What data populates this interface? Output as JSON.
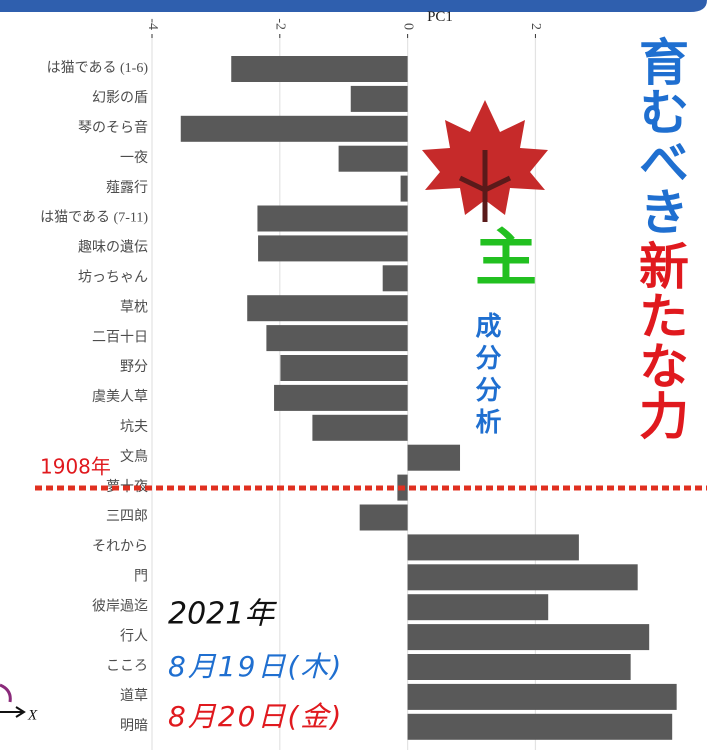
{
  "chart_data": {
    "type": "bar",
    "orientation": "horizontal",
    "x_label": "PC1",
    "categories": [
      "は猫である (1-6)",
      "幻影の盾",
      "琴のそら音",
      "一夜",
      "薤露行",
      "は猫である (7-11)",
      "趣味の遺伝",
      "坊っちゃん",
      "草枕",
      "二百十日",
      "野分",
      "虞美人草",
      "坑夫",
      "文鳥",
      "夢十夜",
      "三四郎",
      "それから",
      "門",
      "彼岸過迄",
      "行人",
      "こころ",
      "道草",
      "明暗"
    ],
    "values": [
      -2.76,
      -0.89,
      -3.55,
      -1.08,
      -0.11,
      -2.35,
      -2.34,
      -0.39,
      -2.51,
      -2.21,
      -1.99,
      -2.09,
      -1.49,
      0.82,
      -0.16,
      -0.75,
      2.68,
      3.6,
      2.2,
      3.78,
      3.49,
      4.21,
      4.14
    ],
    "color": "#595959",
    "xlim": [
      -4,
      4.45
    ],
    "xticks": [
      -4,
      -2,
      0,
      2
    ],
    "grid": true
  },
  "overlay": {
    "heading_blue": "育むべき",
    "heading_red": "新たな力",
    "main": "主",
    "sub": "成分分析",
    "marker": "1908年",
    "year": "2021年",
    "dates": [
      "8月19日(木)",
      "8月20日(金)"
    ],
    "axis_hint": "X"
  }
}
